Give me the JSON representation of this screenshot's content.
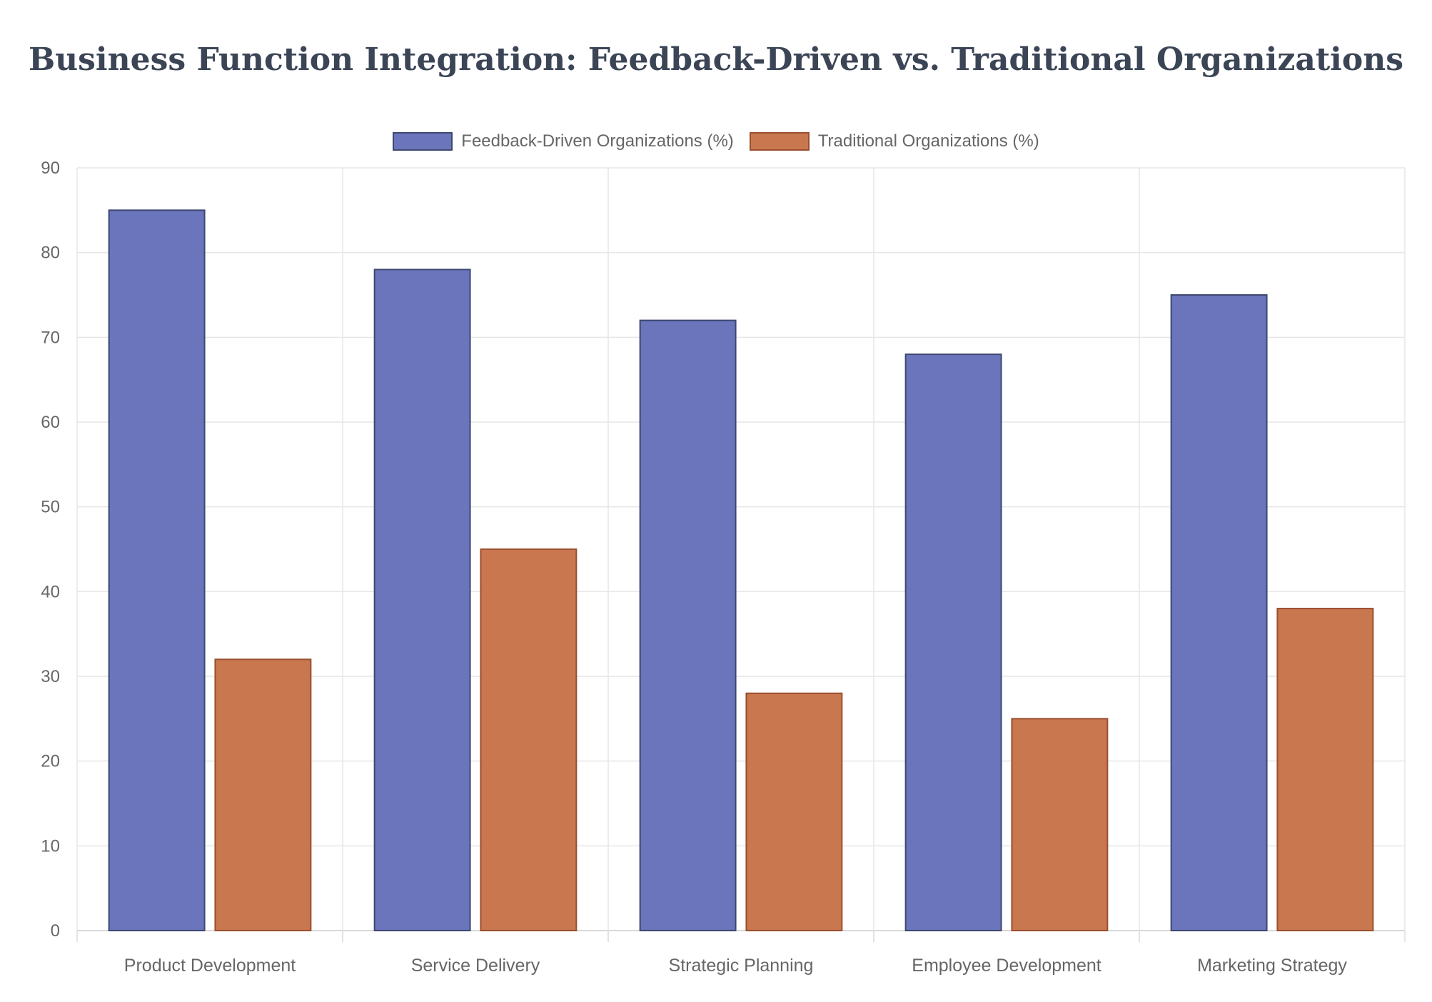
{
  "chart_data": {
    "type": "bar",
    "title": "Business Function Integration: Feedback-Driven vs. Traditional Organizations",
    "categories": [
      "Product Development",
      "Service Delivery",
      "Strategic Planning",
      "Employee Development",
      "Marketing Strategy"
    ],
    "series": [
      {
        "name": "Feedback-Driven Organizations (%)",
        "values": [
          85,
          78,
          72,
          68,
          75
        ],
        "color": "#6b75bb",
        "border_color": "#3d4870"
      },
      {
        "name": "Traditional Organizations (%)",
        "values": [
          32,
          45,
          28,
          25,
          38
        ],
        "color": "#c9774f",
        "border_color": "#9a4e2f"
      }
    ],
    "xlabel": "",
    "ylabel": "",
    "ylim": [
      0,
      90
    ],
    "yticks": [
      "0",
      "10",
      "20",
      "30",
      "40",
      "50",
      "60",
      "70",
      "80",
      "90"
    ],
    "grid": true,
    "legend_position": "top"
  }
}
